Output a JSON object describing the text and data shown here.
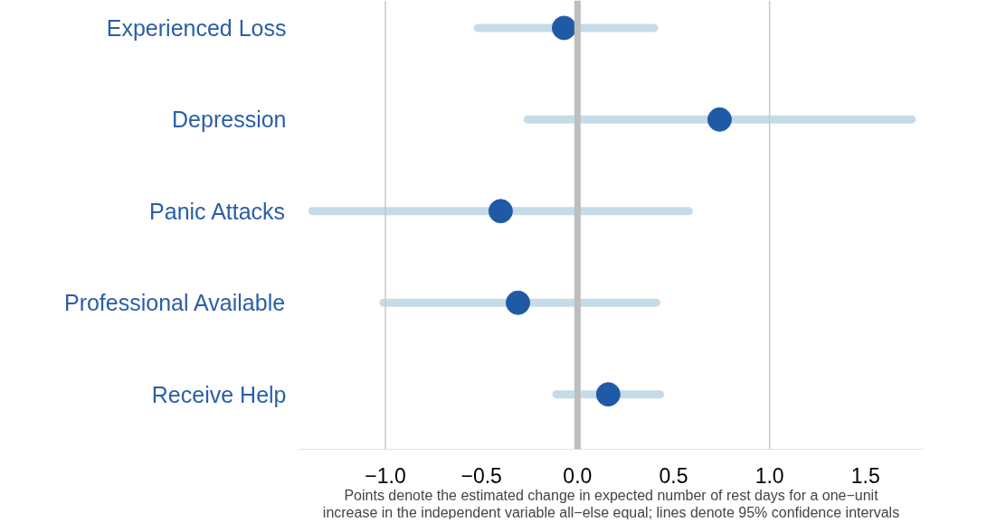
{
  "chart_data": {
    "type": "scatter",
    "orientation": "horizontal",
    "categories": [
      "Experienced Loss",
      "Depression",
      "Panic Attacks",
      "Professional Available",
      "Receive Help"
    ],
    "values": [
      -0.07,
      0.74,
      -0.4,
      -0.31,
      0.16
    ],
    "errors": [
      [
        -0.52,
        0.4
      ],
      1.0,
      0.98,
      [
        -1.01,
        0.41
      ],
      [
        -0.11,
        0.43
      ]
    ],
    "color": "#1f5aa6",
    "xlim": [
      -1.45,
      1.8
    ],
    "xticks": [
      {
        "value": -1,
        "label": "−1.0"
      },
      {
        "value": -0.5,
        "label": "−0.5"
      },
      {
        "value": 0,
        "label": "0.0"
      },
      {
        "value": 0.5,
        "label": "0.5"
      },
      {
        "value": 1,
        "label": "1.0"
      },
      {
        "value": 1.5,
        "label": "1.5"
      }
    ],
    "marker": "circle",
    "grid": false,
    "ref_lines": [
      {
        "axis": "x",
        "value": -1,
        "color": "#c8c8c8"
      },
      {
        "axis": "x",
        "value": 0,
        "color": "#bebebe"
      },
      {
        "axis": "x",
        "value": 1,
        "color": "#c8c8c8"
      }
    ],
    "annotations": [
      "Points denote the estimated change in expected number of rest days for a one−unit\nincrease in the independent variable all−else equal; lines denote 95% confidence intervals"
    ]
  }
}
